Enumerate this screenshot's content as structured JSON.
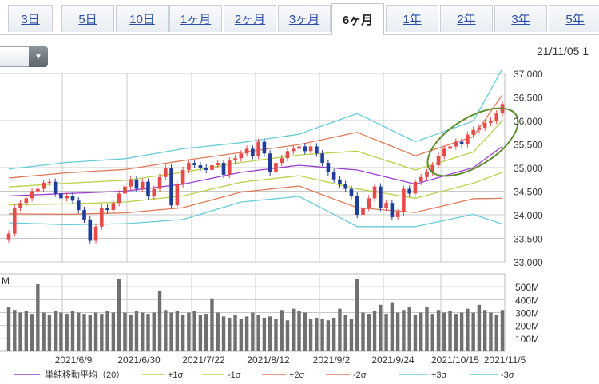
{
  "tabs": [
    {
      "label": "3日",
      "active": false
    },
    {
      "label": "5日",
      "active": false
    },
    {
      "label": "10日",
      "active": false
    },
    {
      "label": "1ヶ月",
      "active": false
    },
    {
      "label": "2ヶ月",
      "active": false
    },
    {
      "label": "3ヶ月",
      "active": false
    },
    {
      "label": "6ヶ月",
      "active": true
    },
    {
      "label": "1年",
      "active": false
    },
    {
      "label": "2年",
      "active": false
    },
    {
      "label": "3年",
      "active": false
    },
    {
      "label": "5年",
      "active": false
    }
  ],
  "date_readout": "21/11/05 1",
  "dropdown": {
    "icon": "chevron-down-icon"
  },
  "colors": {
    "up": "#e84a4a",
    "down": "#1f3c9a",
    "sma": "#9a3fd0",
    "sigma1": "#b8d24a",
    "sigma2": "#e07a5a",
    "sigma3": "#66ccd8",
    "volume": "#707070",
    "grid": "#c8c8c8",
    "highlight": "#5f8c2a"
  },
  "chart_data": [
    {
      "type": "line",
      "name": "price",
      "ylim": [
        33000,
        37000
      ],
      "yticks": [
        "33,000",
        "33,500",
        "34,000",
        "34,500",
        "35,000",
        "35,500",
        "36,000",
        "36,500",
        "37,000"
      ],
      "ytick_values": [
        33000,
        33500,
        34000,
        34500,
        35000,
        35500,
        36000,
        36500,
        37000
      ],
      "close": [
        33600,
        34150,
        34250,
        34350,
        34500,
        34550,
        34680,
        34700,
        34450,
        34350,
        34400,
        34300,
        34100,
        33900,
        33450,
        33750,
        34150,
        34100,
        34250,
        34450,
        34600,
        34750,
        34550,
        34700,
        34400,
        34550,
        34800,
        35000,
        34200,
        34650,
        34950,
        35100,
        35050,
        35000,
        34950,
        35050,
        35100,
        34850,
        35150,
        35200,
        35300,
        35400,
        35250,
        35550,
        35300,
        34900,
        35100,
        35200,
        35350,
        35400,
        35450,
        35350,
        35450,
        35300,
        35100,
        34900,
        34750,
        34650,
        34550,
        34400,
        34000,
        34150,
        34350,
        34600,
        34150,
        34250,
        33950,
        34050,
        34550,
        34450,
        34700,
        34800,
        34900,
        35050,
        35250,
        35400,
        35450,
        35550,
        35500,
        35700,
        35800,
        35850,
        35950,
        36000,
        36150,
        36350
      ],
      "band_days": [
        0,
        10,
        20,
        30,
        40,
        50,
        60,
        70,
        80,
        85
      ],
      "sma20": [
        34400,
        34450,
        34500,
        34650,
        34900,
        35050,
        34950,
        34650,
        35000,
        35450
      ],
      "sigma": [
        190,
        220,
        230,
        250,
        210,
        220,
        400,
        300,
        330,
        550
      ],
      "series": [
        {
          "name": "単純移動平均（20）"
        },
        {
          "name": "+1σ"
        },
        {
          "name": "-1σ"
        },
        {
          "name": "+2σ"
        },
        {
          "name": "-2σ"
        },
        {
          "name": "+3σ"
        },
        {
          "name": "-3σ"
        }
      ],
      "highlight": "ellipse around the last 13 sessions"
    },
    {
      "type": "bar",
      "name": "volume",
      "yunit": "M",
      "ylim": [
        0,
        600
      ],
      "yticks": [
        "100M",
        "200M",
        "300M",
        "400M",
        "500M"
      ],
      "ytick_values": [
        100,
        200,
        300,
        400,
        500
      ],
      "values": [
        340,
        320,
        300,
        310,
        290,
        520,
        300,
        280,
        310,
        300,
        290,
        310,
        300,
        290,
        280,
        300,
        290,
        310,
        300,
        560,
        300,
        280,
        310,
        300,
        290,
        300,
        470,
        320,
        300,
        310,
        280,
        300,
        310,
        280,
        290,
        410,
        300,
        270,
        260,
        280,
        250,
        270,
        300,
        280,
        260,
        270,
        250,
        320,
        240,
        330,
        310,
        300,
        250,
        260,
        250,
        240,
        260,
        330,
        280,
        250,
        560,
        300,
        290,
        310,
        360,
        290,
        380,
        300,
        320,
        340,
        280,
        300,
        340,
        290,
        320,
        300,
        310,
        290,
        300,
        330,
        300,
        360,
        320,
        300,
        280,
        320
      ],
      "xticks": [
        "2021/6/9",
        "2021/6/30",
        "2021/7/22",
        "2021/8/12",
        "2021/9/2",
        "2021/9/24",
        "2021/10/15",
        "2021/11/5"
      ]
    }
  ]
}
